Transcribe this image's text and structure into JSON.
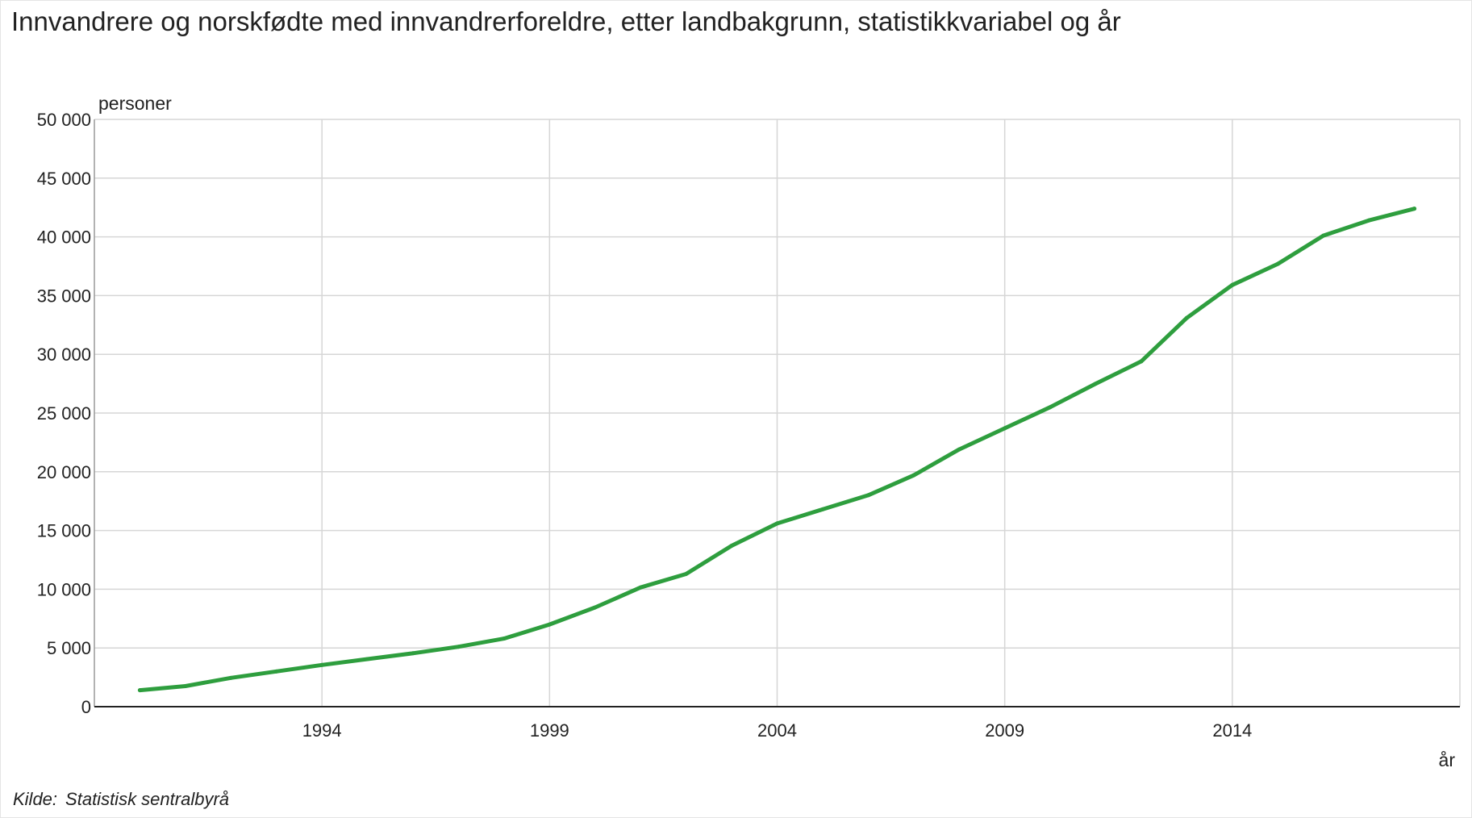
{
  "chart_data": {
    "type": "line",
    "title": "Innvandrere og norskfødte med innvandrerforeldre, etter landbakgrunn, statistikkvariabel og år",
    "ylabel": "personer",
    "xlabel": "år",
    "ylim": [
      0,
      50000
    ],
    "yticks": [
      0,
      5000,
      10000,
      15000,
      20000,
      25000,
      30000,
      35000,
      40000,
      45000,
      50000
    ],
    "ytick_labels": [
      "0",
      "5 000",
      "10 000",
      "15 000",
      "20 000",
      "25 000",
      "30 000",
      "35 000",
      "40 000",
      "45 000",
      "50 000"
    ],
    "xlim": [
      1989,
      2019
    ],
    "xticks": [
      1994,
      1999,
      2004,
      2009,
      2014
    ],
    "xtick_labels": [
      "1994",
      "1999",
      "2004",
      "2009",
      "2014"
    ],
    "grid": true,
    "color": "#2e9e3e",
    "series": [
      {
        "x": [
          1990,
          1991,
          1992,
          1993,
          1994,
          1995,
          1996,
          1997,
          1998,
          1999,
          2000,
          2001,
          2002,
          2003,
          2004,
          2005,
          2006,
          2007,
          2008,
          2009,
          2010,
          2011,
          2012,
          2013,
          2014,
          2015,
          2016,
          2017,
          2018
        ],
        "values": [
          1400,
          1750,
          2450,
          3000,
          3550,
          4050,
          4550,
          5100,
          5800,
          7000,
          8450,
          10150,
          11300,
          13700,
          15600,
          16800,
          18000,
          19700,
          21900,
          23700,
          25500,
          27500,
          29400,
          33100,
          35900,
          37700,
          40100,
          41400,
          42400
        ]
      }
    ]
  },
  "source": {
    "label": "Kilde:",
    "value": "Statistisk sentralbyrå"
  }
}
